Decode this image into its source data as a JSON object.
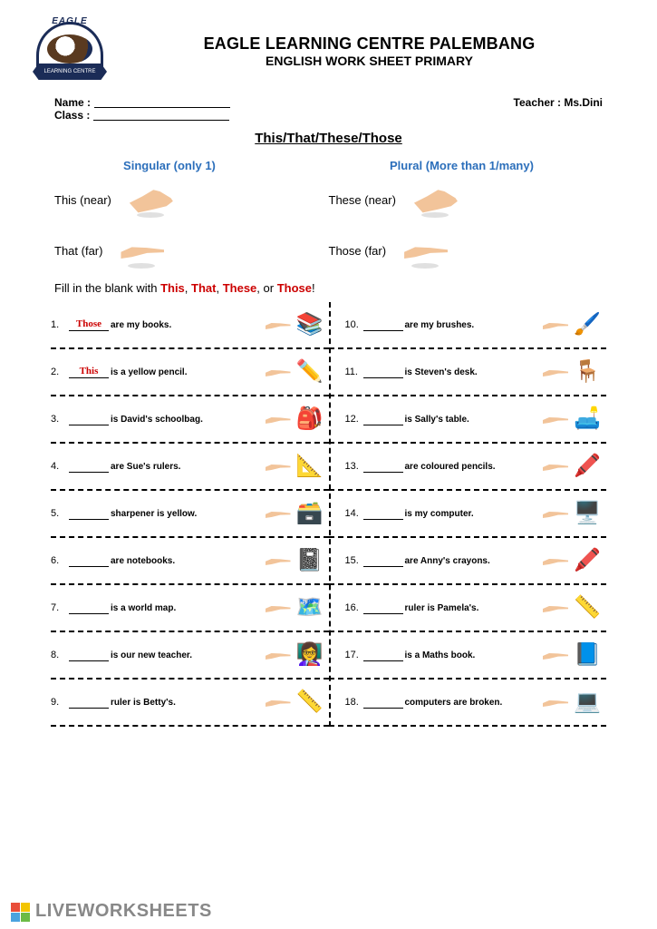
{
  "logo": {
    "top": "EAGLE",
    "banner": "LEARNING CENTRE"
  },
  "header": {
    "school": "EAGLE LEARNING CENTRE PALEMBANG",
    "sheet": "ENGLISH WORK SHEET PRIMARY"
  },
  "meta": {
    "name_label": "Name :",
    "class_label": "Class :",
    "teacher_label": "Teacher : Ms.Dini"
  },
  "topic": "This/That/These/Those",
  "columns": {
    "singular": "Singular (only 1)",
    "plural": "Plural (More than 1/many)"
  },
  "demo": [
    {
      "label": "This (near)",
      "hand": "open"
    },
    {
      "label": "These (near)",
      "hand": "open"
    },
    {
      "label": "That (far)",
      "hand": "point"
    },
    {
      "label": "Those (far)",
      "hand": "point"
    }
  ],
  "instruction_prefix": "Fill in the blank with ",
  "instruction_words": [
    "This",
    "That",
    "These",
    "Those"
  ],
  "instruction_suffix": "!",
  "colors": {
    "heading_blue": "#2c6fbb",
    "keyword_red": "#c00",
    "body_text": "#000"
  },
  "items_left": [
    {
      "n": "1.",
      "answer": "Those",
      "text": "are my books.",
      "icon": "📚"
    },
    {
      "n": "2.",
      "answer": "This",
      "text": "is a yellow pencil.",
      "icon": "✏️"
    },
    {
      "n": "3.",
      "answer": "",
      "text": "is David's schoolbag.",
      "icon": "🎒"
    },
    {
      "n": "4.",
      "answer": "",
      "text": "are Sue's rulers.",
      "icon": "📐"
    },
    {
      "n": "5.",
      "answer": "",
      "text": "sharpener is yellow.",
      "icon": "🗃️"
    },
    {
      "n": "6.",
      "answer": "",
      "text": "are notebooks.",
      "icon": "📓"
    },
    {
      "n": "7.",
      "answer": "",
      "text": "is a world map.",
      "icon": "🗺️"
    },
    {
      "n": "8.",
      "answer": "",
      "text": "is our new teacher.",
      "icon": "👩‍🏫"
    },
    {
      "n": "9.",
      "answer": "",
      "text": "ruler is Betty's.",
      "icon": "📏"
    }
  ],
  "items_right": [
    {
      "n": "10.",
      "answer": "",
      "text": "are my brushes.",
      "icon": "🖌️"
    },
    {
      "n": "11.",
      "answer": "",
      "text": "is Steven's desk.",
      "icon": "🪑"
    },
    {
      "n": "12.",
      "answer": "",
      "text": "is Sally's table.",
      "icon": "🛋️"
    },
    {
      "n": "13.",
      "answer": "",
      "text": "are coloured pencils.",
      "icon": "🖍️"
    },
    {
      "n": "14.",
      "answer": "",
      "text": "is my computer.",
      "icon": "🖥️"
    },
    {
      "n": "15.",
      "answer": "",
      "text": "are Anny's crayons.",
      "icon": "🖍️"
    },
    {
      "n": "16.",
      "answer": "",
      "text": "ruler is Pamela's.",
      "icon": "📏"
    },
    {
      "n": "17.",
      "answer": "",
      "text": "is a Maths book.",
      "icon": "📘"
    },
    {
      "n": "18.",
      "answer": "",
      "text": "computers are broken.",
      "icon": "💻"
    }
  ],
  "watermark": "LIVEWORKSHEETS"
}
